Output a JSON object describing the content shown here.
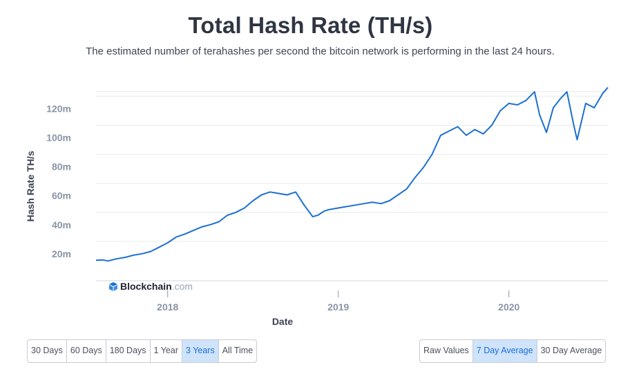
{
  "title": "Total Hash Rate (TH/s)",
  "subtitle": "The estimated number of terahashes per second the bitcoin network is performing in the last 24 hours.",
  "brand": {
    "name": "Blockchain",
    "suffix": ".com"
  },
  "time_buttons": [
    {
      "label": "30 Days",
      "active": false
    },
    {
      "label": "60 Days",
      "active": false
    },
    {
      "label": "180 Days",
      "active": false
    },
    {
      "label": "1 Year",
      "active": false
    },
    {
      "label": "3 Years",
      "active": true
    },
    {
      "label": "All Time",
      "active": false
    }
  ],
  "avg_buttons": [
    {
      "label": "Raw Values",
      "active": false
    },
    {
      "label": "7 Day Average",
      "active": true
    },
    {
      "label": "30 Day Average",
      "active": false
    }
  ],
  "colors": {
    "line": "#1b6fd4",
    "active_bg": "#cfe3fb",
    "grid": "#e6e9ee"
  },
  "chart_data": {
    "type": "line",
    "xlabel": "Date",
    "ylabel": "Hash Rate TH/s",
    "xlim": [
      2017.58,
      2020.58
    ],
    "ylim": [
      0,
      130000000
    ],
    "x_ticks": [
      {
        "value": 2018,
        "label": "2018"
      },
      {
        "value": 2019,
        "label": "2019"
      },
      {
        "value": 2020,
        "label": "2020"
      }
    ],
    "y_ticks": [
      {
        "value": 20000000,
        "label": "20m"
      },
      {
        "value": 40000000,
        "label": "40m"
      },
      {
        "value": 60000000,
        "label": "60m"
      },
      {
        "value": 80000000,
        "label": "80m"
      },
      {
        "value": 100000000,
        "label": "100m"
      },
      {
        "value": 120000000,
        "label": "120m"
      }
    ],
    "grid": true,
    "series": [
      {
        "x": [
          2017.58,
          2017.62,
          2017.65,
          2017.7,
          2017.75,
          2017.8,
          2017.85,
          2017.9,
          2017.95,
          2018.0,
          2018.05,
          2018.1,
          2018.15,
          2018.2,
          2018.25,
          2018.3,
          2018.35,
          2018.4,
          2018.45,
          2018.5,
          2018.55,
          2018.6,
          2018.65,
          2018.7,
          2018.75,
          2018.8,
          2018.85,
          2018.88,
          2018.92,
          2018.95,
          2019.0,
          2019.05,
          2019.1,
          2019.15,
          2019.2,
          2019.25,
          2019.3,
          2019.35,
          2019.4,
          2019.45,
          2019.5,
          2019.55,
          2019.6,
          2019.65,
          2019.7,
          2019.75,
          2019.8,
          2019.85,
          2019.9,
          2019.95,
          2020.0,
          2020.05,
          2020.1,
          2020.15,
          2020.18,
          2020.22,
          2020.26,
          2020.3,
          2020.34,
          2020.38,
          2020.4,
          2020.45,
          2020.5,
          2020.55,
          2020.58
        ],
        "y": [
          7000000,
          7200000,
          6500000,
          8000000,
          9000000,
          10500000,
          11500000,
          13000000,
          16000000,
          19000000,
          23000000,
          25000000,
          27500000,
          30000000,
          31500000,
          33500000,
          38000000,
          40000000,
          43000000,
          48000000,
          52000000,
          54000000,
          53000000,
          52000000,
          54000000,
          45000000,
          37000000,
          38000000,
          41000000,
          42000000,
          43000000,
          44000000,
          45000000,
          46000000,
          47000000,
          46000000,
          48000000,
          52000000,
          56000000,
          64000000,
          71000000,
          80000000,
          93000000,
          96000000,
          99000000,
          93000000,
          97000000,
          94000000,
          100000000,
          110000000,
          115000000,
          114000000,
          117000000,
          123000000,
          107000000,
          95000000,
          112000000,
          118000000,
          123000000,
          100000000,
          90000000,
          115000000,
          112000000,
          122000000,
          126000000
        ]
      }
    ]
  }
}
